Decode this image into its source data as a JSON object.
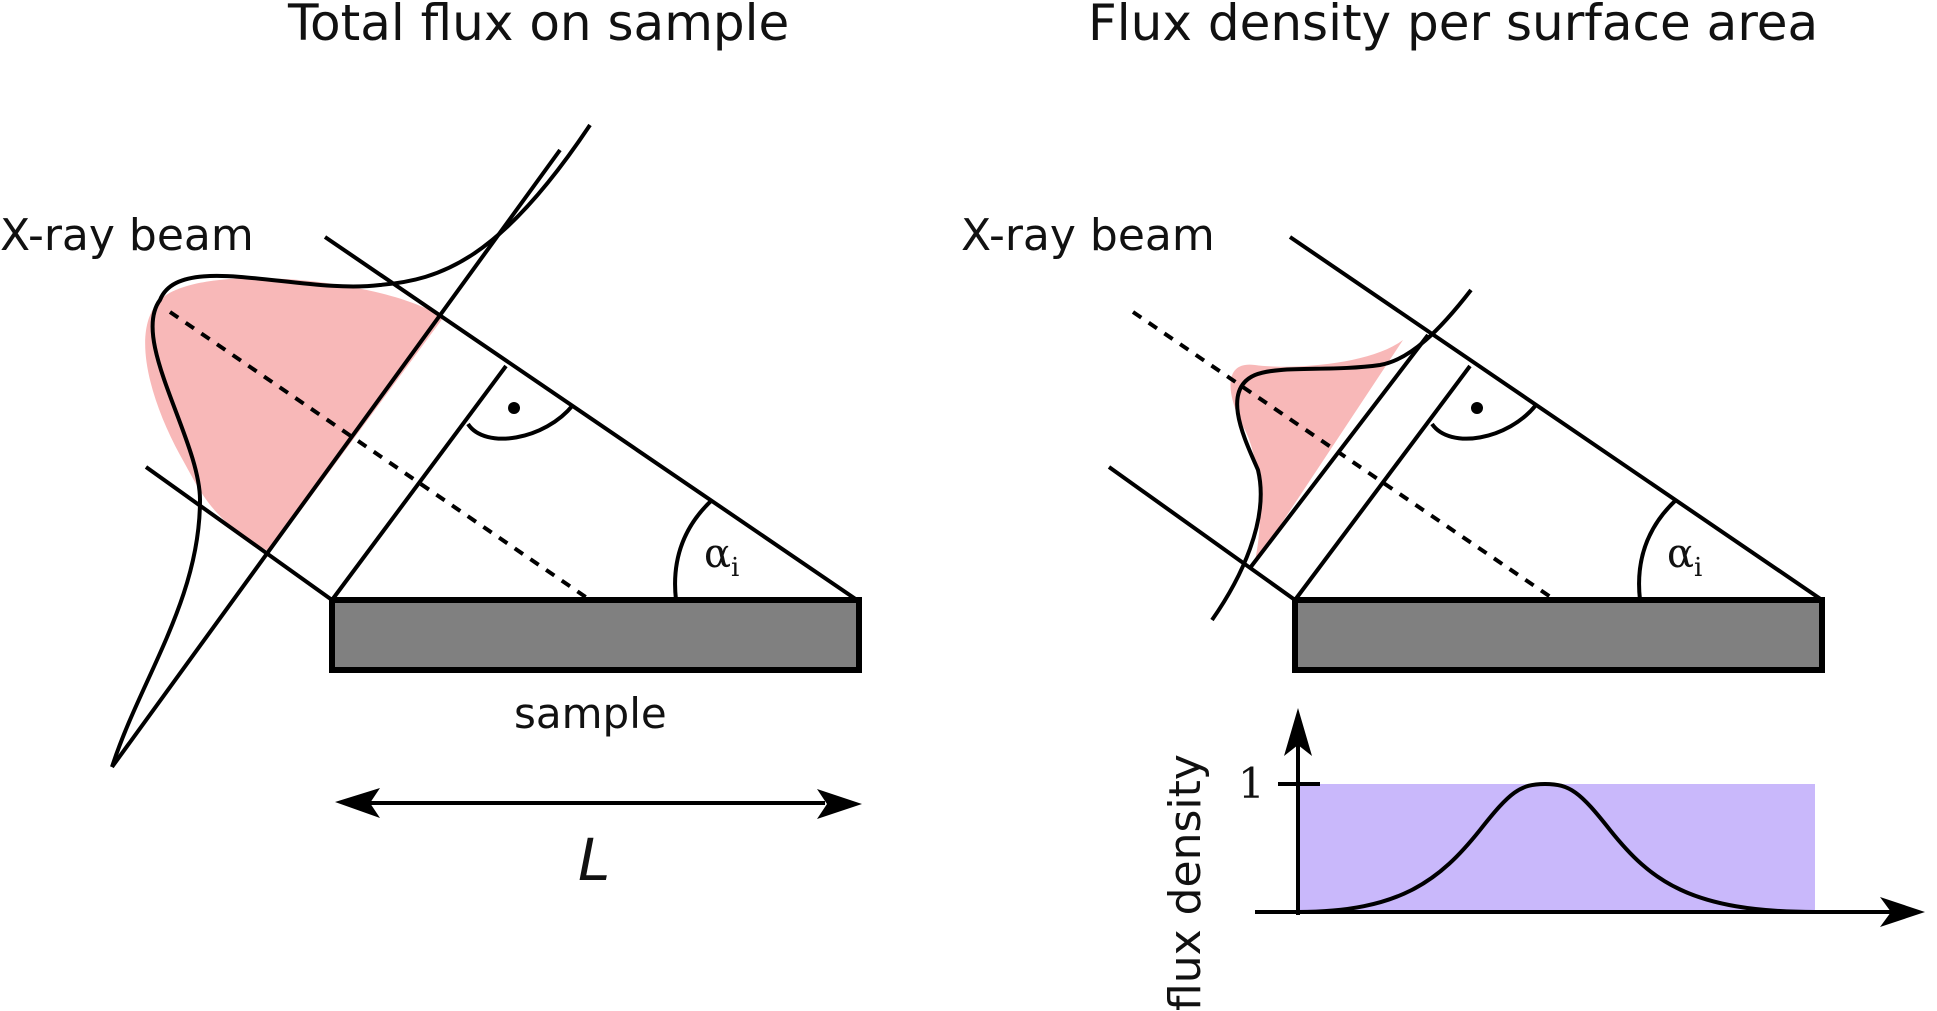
{
  "left_panel": {
    "title": "Total flux on sample",
    "beam_label": "X-ray beam",
    "sample_label": "sample",
    "angle_label": "α",
    "angle_subscript": "i",
    "length_label": "L"
  },
  "right_panel": {
    "title": "Flux density per surface area",
    "beam_label": "X-ray beam",
    "angle_label": "α",
    "angle_subscript": "i",
    "plot": {
      "ylabel": "flux density",
      "ytick": "1"
    }
  },
  "colors": {
    "beam_fill": "#f8b8b8",
    "sample_fill": "#808080",
    "density_fill": "#c9b8fb",
    "stroke": "#000000"
  }
}
